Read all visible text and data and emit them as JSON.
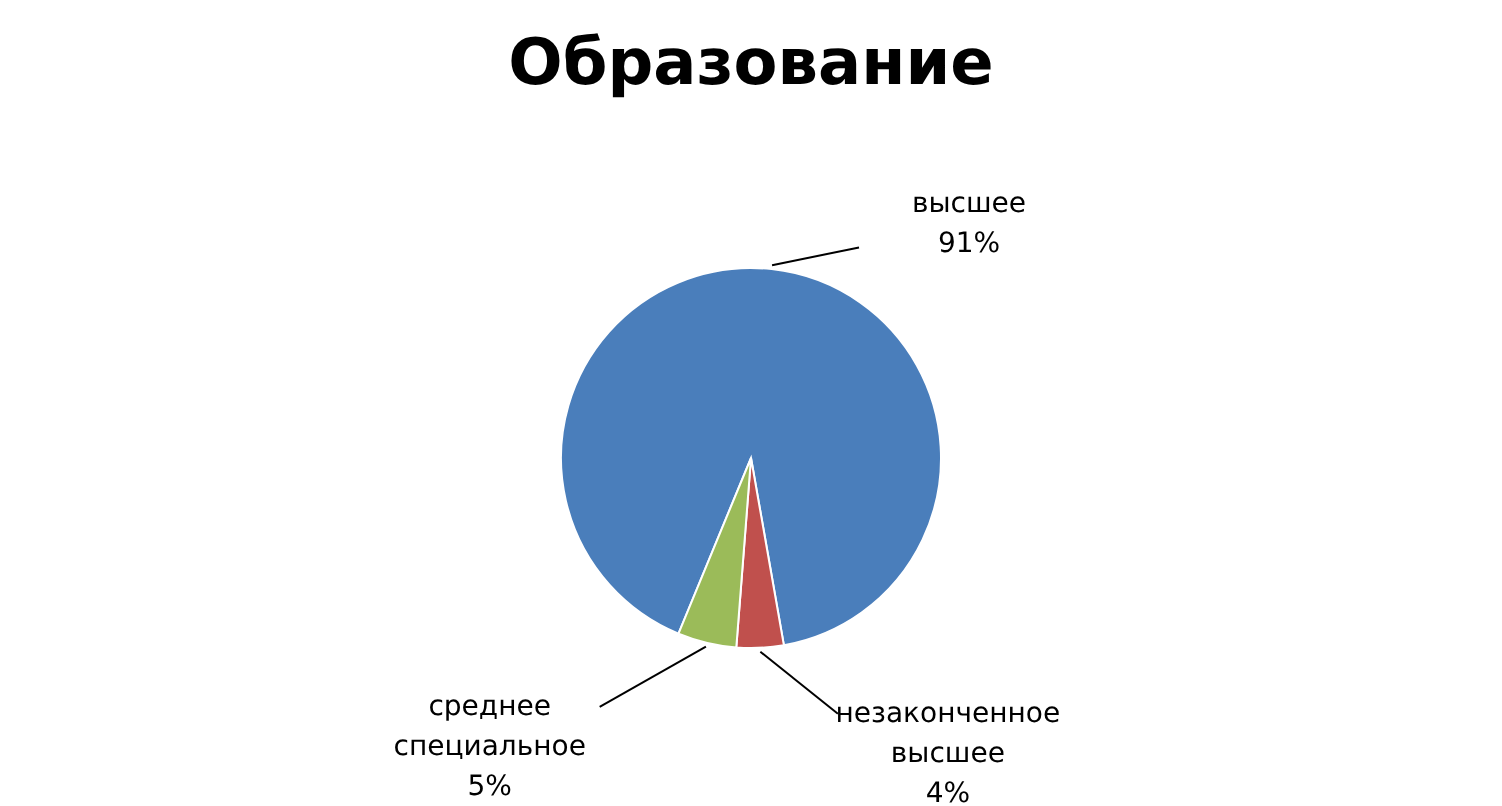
{
  "chart_data": {
    "type": "pie",
    "title": "Образование",
    "categories": [
      "высшее",
      "незаконченное высшее",
      "среднее специальное"
    ],
    "values": [
      91,
      4,
      5
    ],
    "colors": [
      "#4a7ebb",
      "#c0504d",
      "#9bbb59"
    ],
    "value_labels": [
      "91%",
      "4%",
      "5%"
    ],
    "legend": false
  }
}
